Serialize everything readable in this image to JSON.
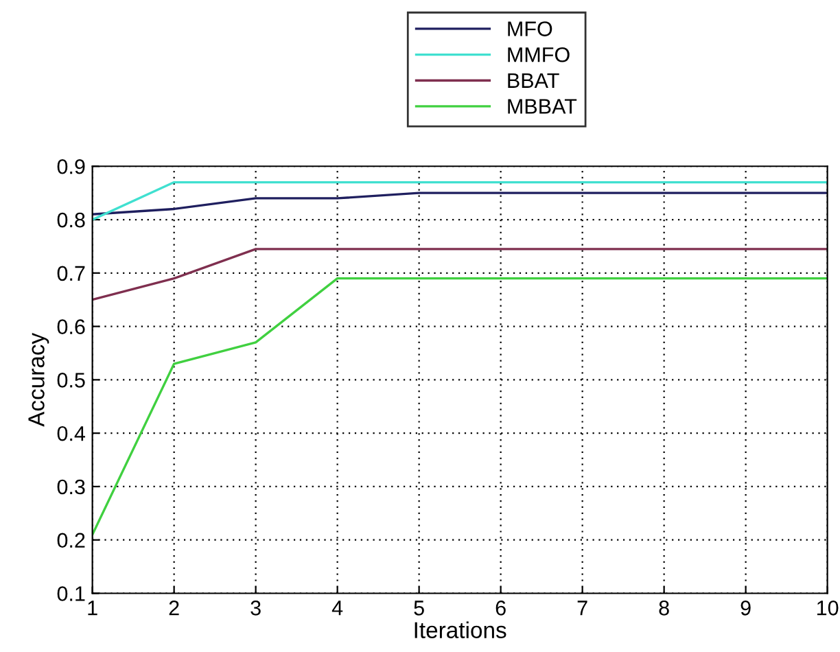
{
  "chart_data": {
    "type": "line",
    "xlabel": "Iterations",
    "ylabel": "Accuracy",
    "x": [
      1,
      2,
      3,
      4,
      5,
      6,
      7,
      8,
      9,
      10
    ],
    "series": [
      {
        "name": "MFO",
        "color": "#1f1f5f",
        "values": [
          0.81,
          0.82,
          0.84,
          0.84,
          0.85,
          0.85,
          0.85,
          0.85,
          0.85,
          0.85
        ]
      },
      {
        "name": "MMFO",
        "color": "#40e0d0",
        "values": [
          0.8,
          0.87,
          0.87,
          0.87,
          0.87,
          0.87,
          0.87,
          0.87,
          0.87,
          0.87
        ]
      },
      {
        "name": "BBAT",
        "color": "#7f2f4f",
        "values": [
          0.65,
          0.69,
          0.745,
          0.745,
          0.745,
          0.745,
          0.745,
          0.745,
          0.745,
          0.745
        ]
      },
      {
        "name": "MBBAT",
        "color": "#40d040",
        "values": [
          0.21,
          0.53,
          0.57,
          0.69,
          0.69,
          0.69,
          0.69,
          0.69,
          0.69,
          0.69
        ]
      }
    ],
    "xlim": [
      1,
      10
    ],
    "ylim": [
      0.1,
      0.9
    ],
    "xticks": [
      1,
      2,
      3,
      4,
      5,
      6,
      7,
      8,
      9,
      10
    ],
    "yticks": [
      0.1,
      0.2,
      0.3,
      0.4,
      0.5,
      0.6,
      0.7,
      0.8,
      0.9
    ],
    "grid": true,
    "legend": "top",
    "line_style": "solid"
  }
}
